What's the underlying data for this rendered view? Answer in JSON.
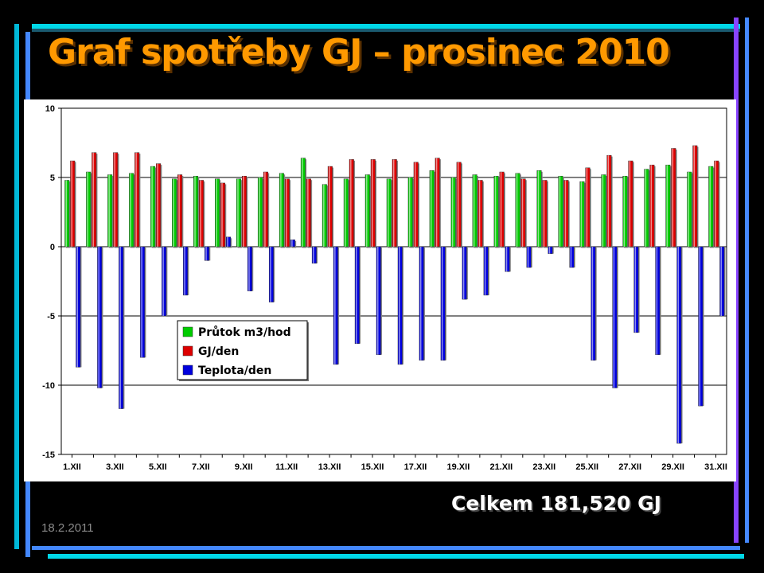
{
  "title": "Graf spotřeby GJ – prosinec 2010",
  "total_text": "Celkem 181,520 GJ",
  "date_text": "18.2.2011",
  "colors": {
    "title": "#ff9900",
    "series": [
      "#00cc00",
      "#dd0000",
      "#0000dd"
    ],
    "frame_cyan": "#00d8e8",
    "frame_purple": "#8844ff",
    "frame_blue": "#4488ff"
  },
  "chart_data": {
    "type": "bar",
    "ylim": [
      -15,
      10
    ],
    "yticks": [
      "10",
      "5",
      "0",
      "-5",
      "-10",
      "-15"
    ],
    "grid": true,
    "legend_position": "center-left",
    "categories": [
      "1.XII",
      "2.XII",
      "3.XII",
      "4.XII",
      "5.XII",
      "6.XII",
      "7.XII",
      "8.XII",
      "9.XII",
      "10.XII",
      "11.XII",
      "12.XII",
      "13.XII",
      "14.XII",
      "15.XII",
      "16.XII",
      "17.XII",
      "18.XII",
      "19.XII",
      "20.XII",
      "21.XII",
      "22.XII",
      "23.XII",
      "24.XII",
      "25.XII",
      "26.XII",
      "27.XII",
      "28.XII",
      "29.XII",
      "30.XII",
      "31.XII"
    ],
    "xtick_labels": [
      "1.XII",
      "",
      "3.XII",
      "",
      "5.XII",
      "",
      "7.XII",
      "",
      "9.XII",
      "",
      "11.XII",
      "",
      "13.XII",
      "",
      "15.XII",
      "",
      "17.XII",
      "",
      "19.XII",
      "",
      "21.XII",
      "",
      "23.XII",
      "",
      "25.XII",
      "",
      "27.XII",
      "",
      "29.XII",
      "",
      "31.XII"
    ],
    "series": [
      {
        "name": "Průtok m3/hod",
        "values": [
          4.8,
          5.4,
          5.2,
          5.3,
          5.8,
          4.9,
          5.1,
          4.9,
          4.9,
          5.0,
          5.3,
          6.4,
          4.5,
          4.9,
          5.2,
          4.9,
          5.0,
          5.5,
          5.0,
          5.2,
          5.1,
          5.3,
          5.5,
          5.1,
          4.7,
          5.2,
          5.1,
          5.6,
          5.9,
          5.4,
          5.8
        ]
      },
      {
        "name": "GJ/den",
        "values": [
          6.2,
          6.8,
          6.8,
          6.8,
          6.0,
          5.2,
          4.8,
          4.6,
          5.1,
          5.4,
          4.9,
          4.9,
          5.8,
          6.3,
          6.3,
          6.3,
          6.1,
          6.4,
          6.1,
          4.8,
          5.4,
          4.9,
          4.8,
          4.8,
          5.7,
          6.6,
          6.2,
          5.9,
          7.1,
          7.3,
          6.2
        ]
      },
      {
        "name": "Teplota/den",
        "values": [
          -8.7,
          -10.2,
          -11.7,
          -8.0,
          -5.0,
          -3.5,
          -1.0,
          0.7,
          -3.2,
          -4.0,
          0.5,
          -1.2,
          -8.5,
          -7.0,
          -7.8,
          -8.5,
          -8.2,
          -8.2,
          -3.8,
          -3.5,
          -1.8,
          -1.5,
          -0.5,
          -1.5,
          -8.2,
          -10.2,
          -6.2,
          -7.8,
          -14.2,
          -11.5,
          -5.0
        ]
      }
    ]
  }
}
